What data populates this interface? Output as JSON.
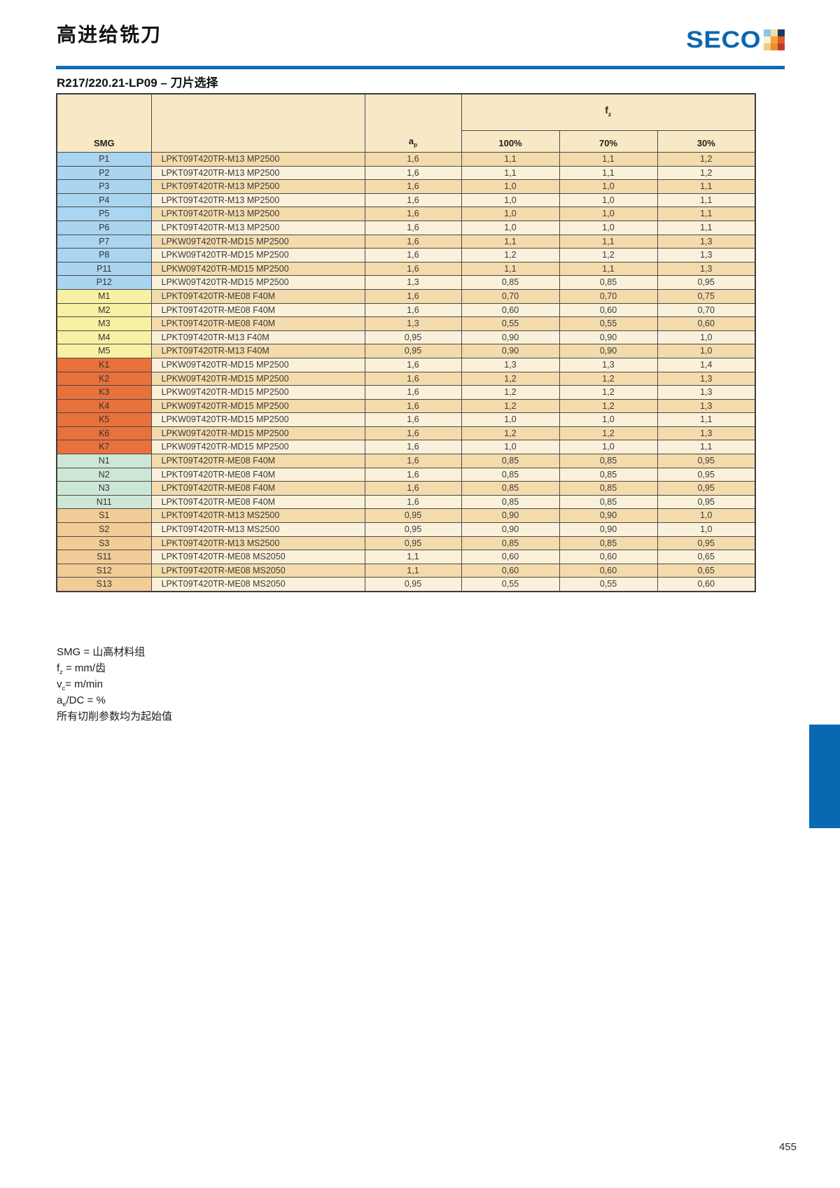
{
  "page": {
    "title": "高进给铣刀",
    "page_number": "455",
    "accent_blue": "#0d6db6"
  },
  "logo": {
    "text": "SECO",
    "flag_colors": [
      [
        "#8fc3e9",
        "#f5dea0",
        "#1a3a66"
      ],
      [
        "#fbf1d6",
        "#f2a237",
        "#de5a28"
      ],
      [
        "#f0c987",
        "#ed8e2e",
        "#bf3a27"
      ]
    ]
  },
  "section": {
    "subtitle": "R217/220.21-LP09 – 刀片选择"
  },
  "table": {
    "headers": {
      "smg": "SMG",
      "insert_col": "",
      "ap_pre": "a",
      "ap_sub": "p",
      "fz_pre": "f",
      "fz_sub": "z",
      "percent_cols": [
        "100%",
        "70%",
        "30%"
      ]
    },
    "group_colors": {
      "P": "#a9d5f0",
      "M": "#f8f1a3",
      "K": "#e8713c",
      "N": "#cde7d6",
      "S": "#f2cc96"
    },
    "row_shades": [
      "#f4dbac",
      "#fbf1da"
    ],
    "rows": [
      {
        "smg": "P1",
        "group": "P",
        "insert": "LPKT09T420TR-M13 MP2500",
        "ap": "1,6",
        "f100": "1,1",
        "f70": "1,1",
        "f30": "1,2"
      },
      {
        "smg": "P2",
        "group": "P",
        "insert": "LPKT09T420TR-M13 MP2500",
        "ap": "1,6",
        "f100": "1,1",
        "f70": "1,1",
        "f30": "1,2"
      },
      {
        "smg": "P3",
        "group": "P",
        "insert": "LPKT09T420TR-M13 MP2500",
        "ap": "1,6",
        "f100": "1,0",
        "f70": "1,0",
        "f30": "1,1"
      },
      {
        "smg": "P4",
        "group": "P",
        "insert": "LPKT09T420TR-M13 MP2500",
        "ap": "1,6",
        "f100": "1,0",
        "f70": "1,0",
        "f30": "1,1"
      },
      {
        "smg": "P5",
        "group": "P",
        "insert": "LPKT09T420TR-M13 MP2500",
        "ap": "1,6",
        "f100": "1,0",
        "f70": "1,0",
        "f30": "1,1"
      },
      {
        "smg": "P6",
        "group": "P",
        "insert": "LPKT09T420TR-M13 MP2500",
        "ap": "1,6",
        "f100": "1,0",
        "f70": "1,0",
        "f30": "1,1"
      },
      {
        "smg": "P7",
        "group": "P",
        "insert": "LPKW09T420TR-MD15 MP2500",
        "ap": "1,6",
        "f100": "1,1",
        "f70": "1,1",
        "f30": "1,3"
      },
      {
        "smg": "P8",
        "group": "P",
        "insert": "LPKW09T420TR-MD15 MP2500",
        "ap": "1,6",
        "f100": "1,2",
        "f70": "1,2",
        "f30": "1,3"
      },
      {
        "smg": "P11",
        "group": "P",
        "insert": "LPKW09T420TR-MD15 MP2500",
        "ap": "1,6",
        "f100": "1,1",
        "f70": "1,1",
        "f30": "1,3"
      },
      {
        "smg": "P12",
        "group": "P",
        "insert": "LPKW09T420TR-MD15 MP2500",
        "ap": "1,3",
        "f100": "0,85",
        "f70": "0,85",
        "f30": "0,95"
      },
      {
        "smg": "M1",
        "group": "M",
        "insert": "LPKT09T420TR-ME08 F40M",
        "ap": "1,6",
        "f100": "0,70",
        "f70": "0,70",
        "f30": "0,75"
      },
      {
        "smg": "M2",
        "group": "M",
        "insert": "LPKT09T420TR-ME08 F40M",
        "ap": "1,6",
        "f100": "0,60",
        "f70": "0,60",
        "f30": "0,70"
      },
      {
        "smg": "M3",
        "group": "M",
        "insert": "LPKT09T420TR-ME08 F40M",
        "ap": "1,3",
        "f100": "0,55",
        "f70": "0,55",
        "f30": "0,60"
      },
      {
        "smg": "M4",
        "group": "M",
        "insert": "LPKT09T420TR-M13 F40M",
        "ap": "0,95",
        "f100": "0,90",
        "f70": "0,90",
        "f30": "1,0"
      },
      {
        "smg": "M5",
        "group": "M",
        "insert": "LPKT09T420TR-M13 F40M",
        "ap": "0,95",
        "f100": "0,90",
        "f70": "0,90",
        "f30": "1,0"
      },
      {
        "smg": "K1",
        "group": "K",
        "insert": "LPKW09T420TR-MD15 MP2500",
        "ap": "1,6",
        "f100": "1,3",
        "f70": "1,3",
        "f30": "1,4"
      },
      {
        "smg": "K2",
        "group": "K",
        "insert": "LPKW09T420TR-MD15 MP2500",
        "ap": "1,6",
        "f100": "1,2",
        "f70": "1,2",
        "f30": "1,3"
      },
      {
        "smg": "K3",
        "group": "K",
        "insert": "LPKW09T420TR-MD15 MP2500",
        "ap": "1,6",
        "f100": "1,2",
        "f70": "1,2",
        "f30": "1,3"
      },
      {
        "smg": "K4",
        "group": "K",
        "insert": "LPKW09T420TR-MD15 MP2500",
        "ap": "1,6",
        "f100": "1,2",
        "f70": "1,2",
        "f30": "1,3"
      },
      {
        "smg": "K5",
        "group": "K",
        "insert": "LPKW09T420TR-MD15 MP2500",
        "ap": "1,6",
        "f100": "1,0",
        "f70": "1,0",
        "f30": "1,1"
      },
      {
        "smg": "K6",
        "group": "K",
        "insert": "LPKW09T420TR-MD15 MP2500",
        "ap": "1,6",
        "f100": "1,2",
        "f70": "1,2",
        "f30": "1,3"
      },
      {
        "smg": "K7",
        "group": "K",
        "insert": "LPKW09T420TR-MD15 MP2500",
        "ap": "1,6",
        "f100": "1,0",
        "f70": "1,0",
        "f30": "1,1"
      },
      {
        "smg": "N1",
        "group": "N",
        "insert": "LPKT09T420TR-ME08 F40M",
        "ap": "1,6",
        "f100": "0,85",
        "f70": "0,85",
        "f30": "0,95"
      },
      {
        "smg": "N2",
        "group": "N",
        "insert": "LPKT09T420TR-ME08 F40M",
        "ap": "1,6",
        "f100": "0,85",
        "f70": "0,85",
        "f30": "0,95"
      },
      {
        "smg": "N3",
        "group": "N",
        "insert": "LPKT09T420TR-ME08 F40M",
        "ap": "1,6",
        "f100": "0,85",
        "f70": "0,85",
        "f30": "0,95"
      },
      {
        "smg": "N11",
        "group": "N",
        "insert": "LPKT09T420TR-ME08 F40M",
        "ap": "1,6",
        "f100": "0,85",
        "f70": "0,85",
        "f30": "0,95"
      },
      {
        "smg": "S1",
        "group": "S",
        "insert": "LPKT09T420TR-M13 MS2500",
        "ap": "0,95",
        "f100": "0,90",
        "f70": "0,90",
        "f30": "1,0"
      },
      {
        "smg": "S2",
        "group": "S",
        "insert": "LPKT09T420TR-M13 MS2500",
        "ap": "0,95",
        "f100": "0,90",
        "f70": "0,90",
        "f30": "1,0"
      },
      {
        "smg": "S3",
        "group": "S",
        "insert": "LPKT09T420TR-M13 MS2500",
        "ap": "0,95",
        "f100": "0,85",
        "f70": "0,85",
        "f30": "0,95"
      },
      {
        "smg": "S11",
        "group": "S",
        "insert": "LPKT09T420TR-ME08 MS2050",
        "ap": "1,1",
        "f100": "0,60",
        "f70": "0,60",
        "f30": "0,65"
      },
      {
        "smg": "S12",
        "group": "S",
        "insert": "LPKT09T420TR-ME08 MS2050",
        "ap": "1,1",
        "f100": "0,60",
        "f70": "0,60",
        "f30": "0,65"
      },
      {
        "smg": "S13",
        "group": "S",
        "insert": "LPKT09T420TR-ME08 MS2050",
        "ap": "0,95",
        "f100": "0,55",
        "f70": "0,55",
        "f30": "0,60"
      }
    ]
  },
  "notes": [
    {
      "pre": "SMG = 山高材料组",
      "sub": "",
      "post": ""
    },
    {
      "pre": "f",
      "sub": "z",
      "post": " = mm/齿"
    },
    {
      "pre": "v",
      "sub": "c",
      "post": "= m/min"
    },
    {
      "pre": "a",
      "sub": "e",
      "post": "/DC = %"
    },
    {
      "pre": "所有切削参数均为起始值",
      "sub": "",
      "post": ""
    }
  ]
}
